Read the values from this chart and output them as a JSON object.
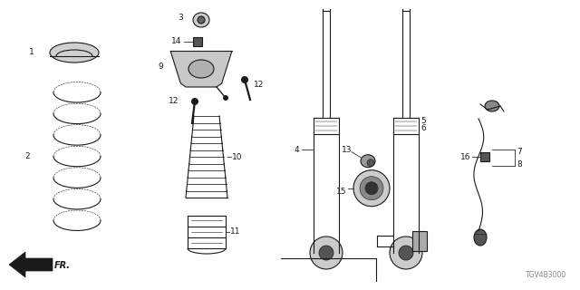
{
  "bg_color": "#ffffff",
  "line_color": "#1a1a1a",
  "part_number_code": "TGV4B3000",
  "gray_color": "#888888",
  "figsize": [
    6.4,
    3.2
  ],
  "dpi": 100
}
